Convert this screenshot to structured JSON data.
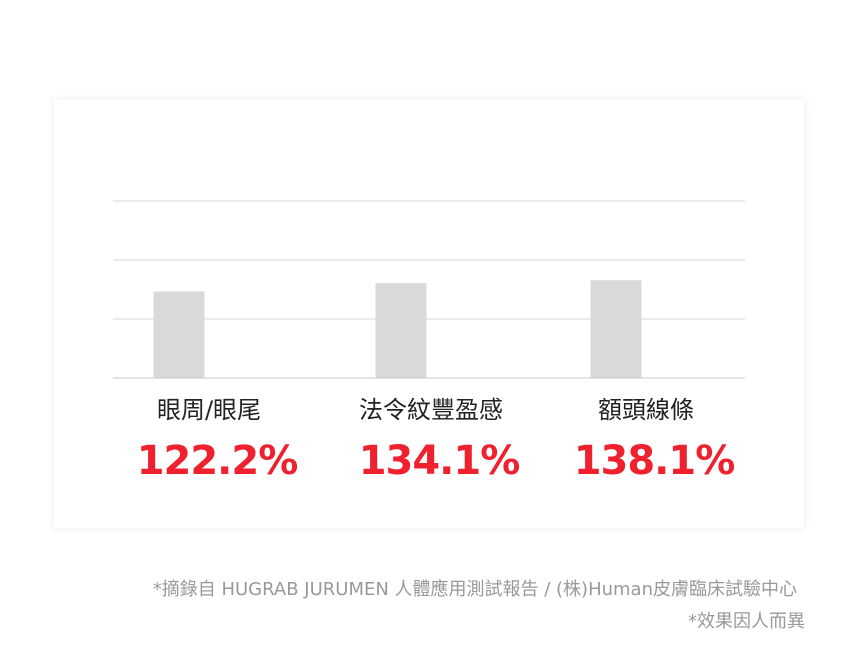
{
  "chart_data": {
    "type": "bar",
    "categories": [
      "眼周/眼尾",
      "法令紋豐盈感",
      "額頭線條"
    ],
    "values": [
      122.2,
      134.1,
      138.1
    ],
    "value_labels": [
      "122.2%",
      "134.1%",
      "138.1%"
    ],
    "color": "#d9d9d9",
    "label_color": "#f0212f",
    "ylim": [
      0,
      250
    ]
  },
  "footnotes": [
    "*摘錄自 HUGRAB JURUMEN 人體應用測試報告 / (株)Human皮膚臨床試驗中心",
    "*效果因人而異"
  ]
}
